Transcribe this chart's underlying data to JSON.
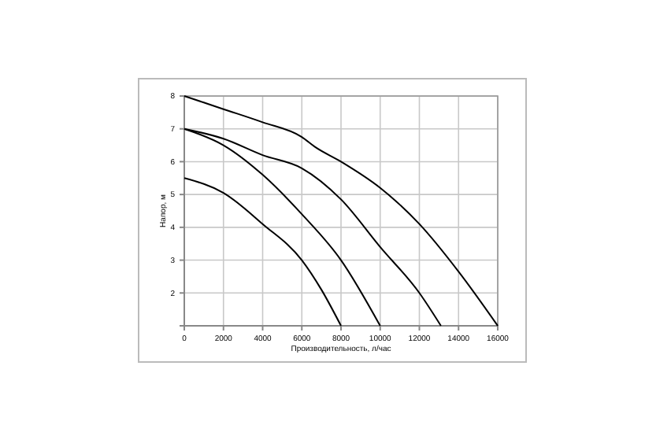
{
  "chart_data": {
    "type": "line",
    "xlabel": "Производительность, л/час",
    "ylabel": "Напор, м",
    "xlim": [
      0,
      16000
    ],
    "xticks": [
      0,
      2000,
      4000,
      6000,
      8000,
      10000,
      12000,
      14000,
      16000
    ],
    "ylim": [
      1,
      8
    ],
    "yticks": [
      {
        "value": 1,
        "label": null
      },
      2,
      3,
      4,
      5,
      6,
      7,
      8
    ],
    "grid": true,
    "marker": "none",
    "line_style": "solid",
    "series": [
      {
        "color": "#000000",
        "x": [
          0,
          2000,
          4000,
          6000,
          6670,
          8000,
          10000,
          12000,
          14000,
          16000
        ],
        "values": [
          8,
          7.6,
          7.2,
          6.75,
          6.45,
          6.0,
          5.2,
          4.1,
          2.65,
          1
        ]
      },
      {
        "color": "#000000",
        "x": [
          0,
          2000,
          4000,
          6000,
          8000,
          10000,
          12000,
          13100
        ],
        "values": [
          7,
          6.7,
          6.2,
          5.8,
          4.85,
          3.4,
          2,
          1
        ]
      },
      {
        "color": "#000000",
        "x": [
          0,
          2000,
          4000,
          6000,
          8000,
          10000
        ],
        "values": [
          7,
          6.5,
          5.6,
          4.4,
          3.0,
          1
        ]
      },
      {
        "color": "#000000",
        "x": [
          0,
          2000,
          4000,
          6000,
          7000,
          8000
        ],
        "values": [
          5.5,
          5.05,
          4.1,
          3.0,
          2.1,
          1
        ]
      }
    ]
  }
}
